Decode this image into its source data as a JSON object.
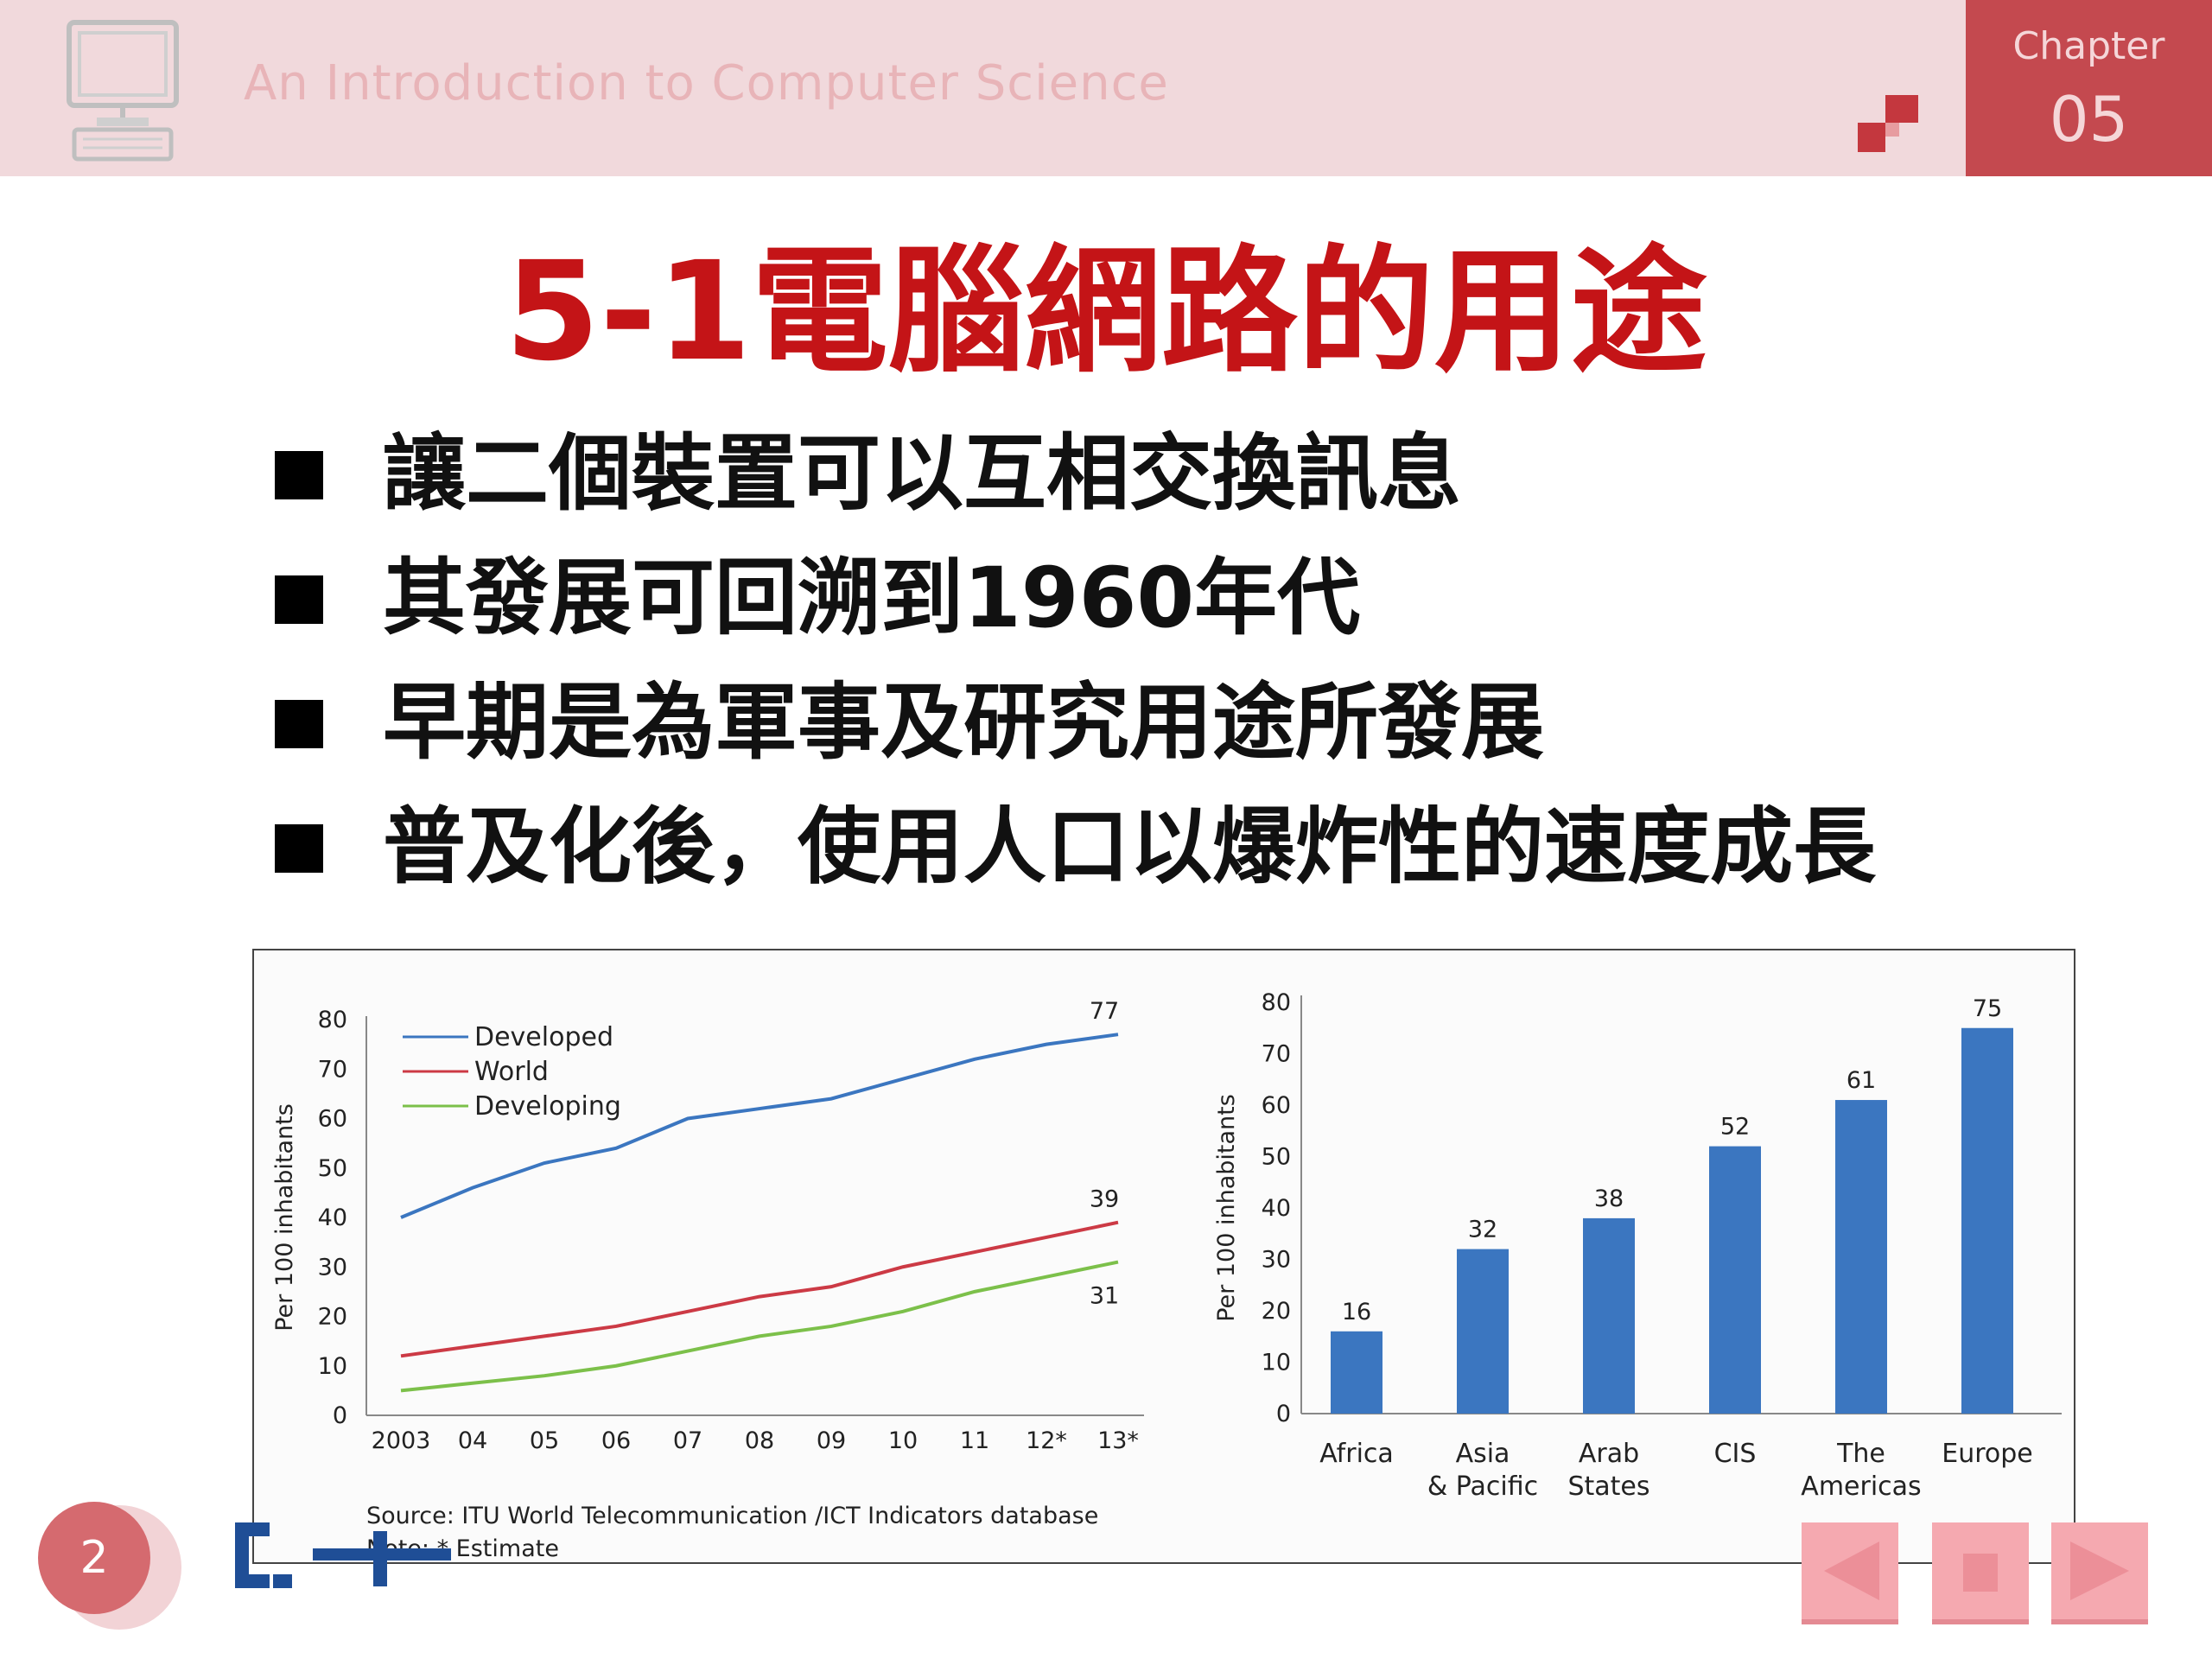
{
  "header": {
    "course_title": "An Introduction to Computer Science",
    "chapter_label": "Chapter",
    "chapter_number": "05"
  },
  "slide": {
    "title": "5-1電腦網路的用途",
    "bullets": [
      "讓二個裝置可以互相交換訊息",
      "其發展可回溯到1960年代",
      "早期是為軍事及研究用途所發展",
      "普及化後，使用人口以爆炸性的速度成長"
    ]
  },
  "footer": {
    "page_number": "2"
  },
  "colors": {
    "header_bg": "#f1d9dc",
    "chapter_bg": "#c4494f",
    "title_red": "#c41417",
    "series_developed": "#3b76c0",
    "series_world": "#cc3a45",
    "series_developing": "#7cc04a",
    "bar_fill": "#3b76c0"
  },
  "chart_data": [
    {
      "type": "line",
      "ylabel": "Per 100 inhabitants",
      "xlabel": "",
      "ylim": [
        0,
        80
      ],
      "yticks": [
        0,
        10,
        20,
        30,
        40,
        50,
        60,
        70,
        80
      ],
      "categories": [
        "2003",
        "04",
        "05",
        "06",
        "07",
        "08",
        "09",
        "10",
        "11",
        "12*",
        "13*"
      ],
      "legend_position": "top-left",
      "grid": false,
      "series": [
        {
          "name": "Developed",
          "color": "#3b76c0",
          "values": [
            40,
            46,
            51,
            54,
            60,
            62,
            64,
            68,
            72,
            75,
            77
          ],
          "end_label": "77"
        },
        {
          "name": "World",
          "color": "#cc3a45",
          "values": [
            12,
            14,
            16,
            18,
            21,
            24,
            26,
            30,
            33,
            36,
            39
          ],
          "end_label": "39"
        },
        {
          "name": "Developing",
          "color": "#7cc04a",
          "values": [
            5,
            6.5,
            8,
            10,
            13,
            16,
            18,
            21,
            25,
            28,
            31
          ],
          "end_label": "31"
        }
      ],
      "source": "Source:  ITU World Telecommunication /ICT Indicators database",
      "note": "Note: * Estimate"
    },
    {
      "type": "bar",
      "ylabel": "Per 100 inhabitants",
      "xlabel": "",
      "ylim": [
        0,
        80
      ],
      "yticks": [
        0,
        10,
        20,
        30,
        40,
        50,
        60,
        70,
        80
      ],
      "categories": [
        [
          "Africa"
        ],
        [
          "Asia",
          "& Pacific"
        ],
        [
          "Arab",
          "States"
        ],
        [
          "CIS"
        ],
        [
          "The",
          "Americas"
        ],
        [
          "Europe"
        ]
      ],
      "values": [
        16,
        32,
        38,
        52,
        61,
        75
      ],
      "grid": false
    }
  ]
}
